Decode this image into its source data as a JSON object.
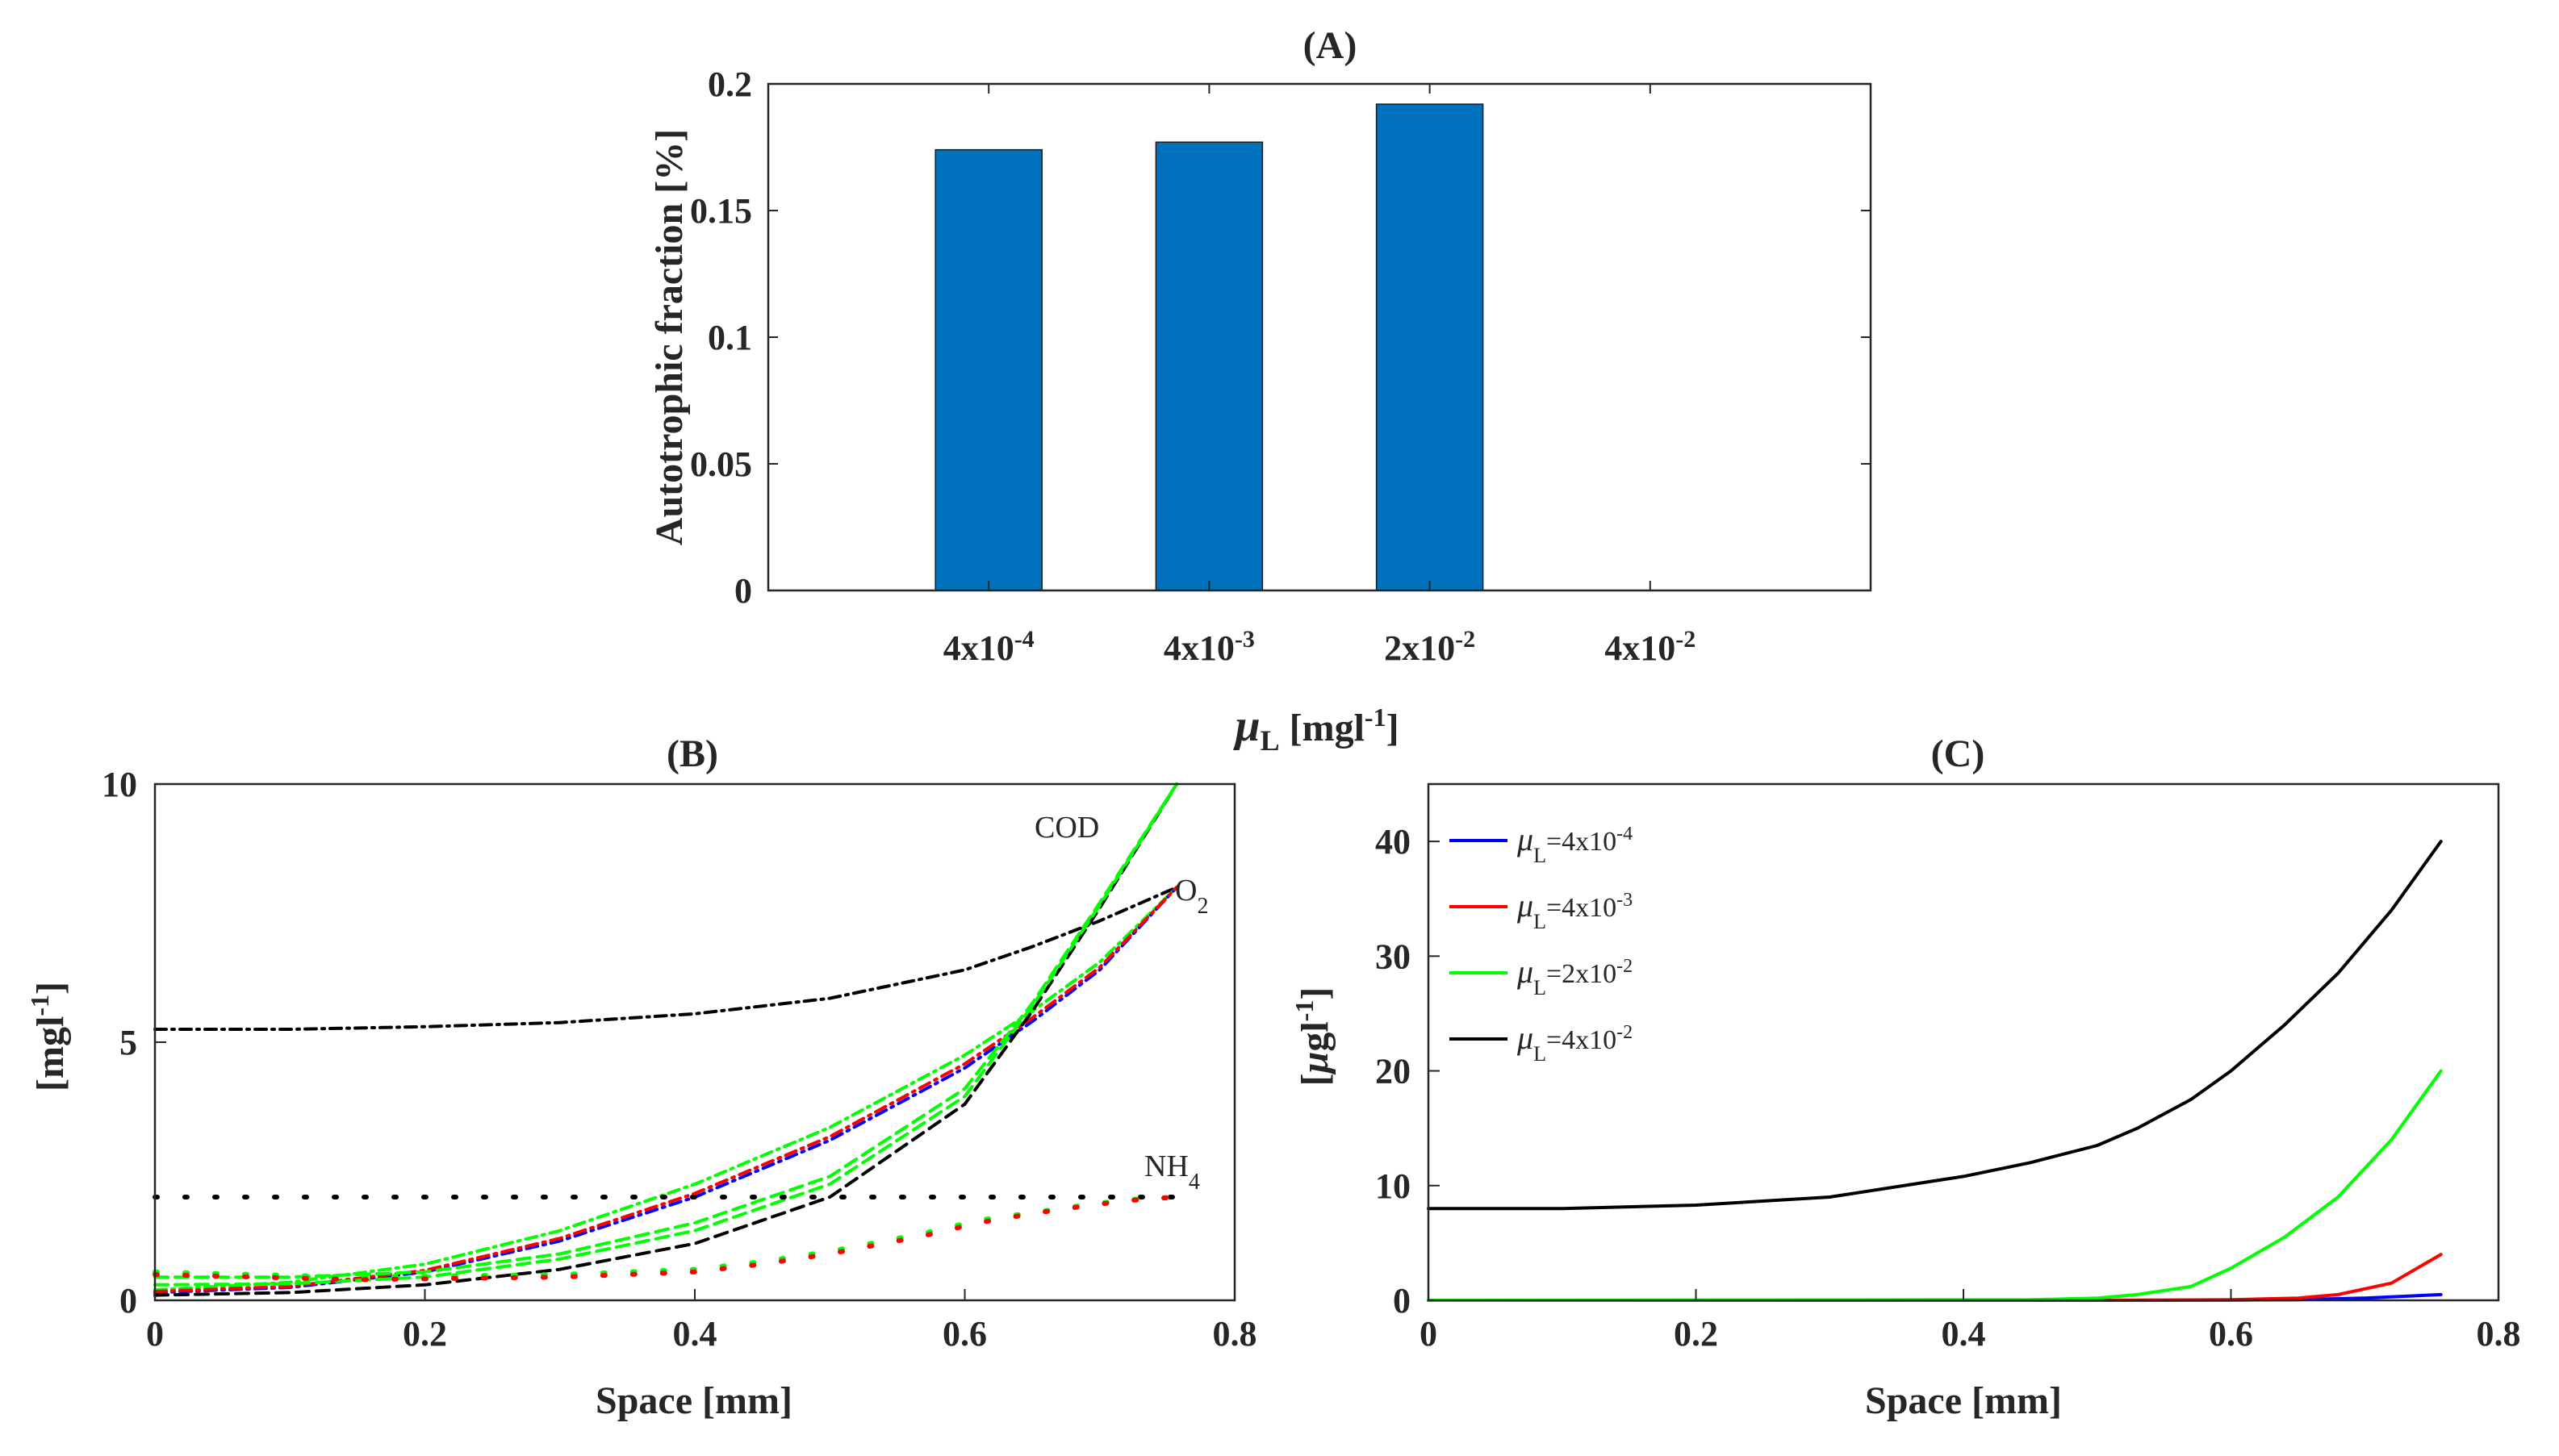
{
  "colors": {
    "bar": "#0072BD",
    "blue": "#0000FF",
    "red": "#FF0000",
    "green": "#00FF00",
    "black": "#000000",
    "axes": "#262626"
  },
  "chart_data": [
    {
      "id": "A",
      "type": "bar",
      "title": "(A)",
      "xlabel": "μL [mgl-1]",
      "ylabel": "Autotrophic fraction [%]",
      "categories": [
        "4x10-4",
        "4x10-3",
        "2x10-2",
        "4x10-2"
      ],
      "values": [
        0.174,
        0.177,
        0.192,
        null
      ],
      "ylim": [
        0,
        0.2
      ],
      "yticks": [
        "0",
        "0.05",
        "0.1",
        "0.15",
        "0.2"
      ],
      "grid": false
    },
    {
      "id": "B",
      "type": "line",
      "title": "(B)",
      "xlabel": "Space [mm]",
      "ylabel": "[mgl-1]",
      "xlim": [
        0,
        0.8
      ],
      "ylim": [
        0,
        10
      ],
      "xticks": [
        "0",
        "0.2",
        "0.4",
        "0.6",
        "0.8"
      ],
      "yticks": [
        "0",
        "5",
        "10"
      ],
      "annotations": [
        "COD",
        "O2",
        "NH4"
      ],
      "grid": false,
      "series": [
        {
          "group": "O2",
          "color": "black",
          "style": "dashdot",
          "x": [
            0,
            0.1,
            0.2,
            0.3,
            0.4,
            0.5,
            0.6,
            0.65,
            0.7,
            0.757
          ],
          "y": [
            5.25,
            5.25,
            5.3,
            5.38,
            5.55,
            5.85,
            6.4,
            6.85,
            7.35,
            8.0
          ]
        },
        {
          "group": "O2",
          "color": "green",
          "style": "dashdot",
          "x": [
            0,
            0.1,
            0.2,
            0.3,
            0.4,
            0.5,
            0.6,
            0.65,
            0.7,
            0.757
          ],
          "y": [
            0.2,
            0.35,
            0.7,
            1.35,
            2.25,
            3.35,
            4.75,
            5.6,
            6.55,
            8.0
          ]
        },
        {
          "group": "O2",
          "color": "blue",
          "style": "dashdot",
          "x": [
            0,
            0.1,
            0.2,
            0.3,
            0.4,
            0.5,
            0.6,
            0.65,
            0.7,
            0.757
          ],
          "y": [
            0.15,
            0.25,
            0.55,
            1.15,
            2.0,
            3.1,
            4.5,
            5.4,
            6.4,
            8.0
          ]
        },
        {
          "group": "O2",
          "color": "red",
          "style": "dashdot",
          "x": [
            0,
            0.1,
            0.2,
            0.3,
            0.4,
            0.5,
            0.6,
            0.65,
            0.7,
            0.757
          ],
          "y": [
            0.17,
            0.27,
            0.58,
            1.2,
            2.07,
            3.17,
            4.58,
            5.47,
            6.45,
            8.0
          ]
        },
        {
          "group": "COD",
          "color": "black",
          "style": "dashed",
          "x": [
            0,
            0.1,
            0.2,
            0.3,
            0.4,
            0.5,
            0.6,
            0.65,
            0.7,
            0.757
          ],
          "y": [
            0.1,
            0.15,
            0.3,
            0.6,
            1.1,
            2.0,
            3.8,
            5.6,
            7.6,
            10.0
          ]
        },
        {
          "group": "COD",
          "color": "green",
          "style": "dashed",
          "x": [
            0,
            0.1,
            0.2,
            0.3,
            0.4,
            0.5,
            0.6,
            0.65,
            0.7,
            0.757
          ],
          "y": [
            0.45,
            0.45,
            0.55,
            0.9,
            1.5,
            2.4,
            4.1,
            5.75,
            7.7,
            10.0
          ]
        },
        {
          "group": "COD",
          "color": "green",
          "style": "dashed",
          "x": [
            0,
            0.1,
            0.2,
            0.3,
            0.4,
            0.5,
            0.6,
            0.65,
            0.7,
            0.757
          ],
          "y": [
            0.3,
            0.32,
            0.45,
            0.8,
            1.35,
            2.25,
            3.95,
            5.7,
            7.65,
            10.0
          ]
        },
        {
          "group": "NH4",
          "color": "black",
          "style": "dotted",
          "x": [
            0,
            0.1,
            0.2,
            0.3,
            0.4,
            0.5,
            0.6,
            0.7,
            0.757
          ],
          "y": [
            2.0,
            2.0,
            2.0,
            2.0,
            2.0,
            2.0,
            2.0,
            2.0,
            2.0
          ]
        },
        {
          "group": "NH4",
          "color": "green",
          "style": "dotted",
          "x": [
            0,
            0.15,
            0.3,
            0.4,
            0.45,
            0.5,
            0.57,
            0.61,
            0.65,
            0.69,
            0.72,
            0.757
          ],
          "y": [
            0.55,
            0.45,
            0.5,
            0.6,
            0.75,
            0.95,
            1.3,
            1.55,
            1.7,
            1.85,
            1.95,
            2.0
          ]
        },
        {
          "group": "NH4",
          "color": "red",
          "style": "dotted",
          "x": [
            0,
            0.15,
            0.3,
            0.4,
            0.45,
            0.5,
            0.57,
            0.61,
            0.65,
            0.69,
            0.72,
            0.757
          ],
          "y": [
            0.5,
            0.4,
            0.45,
            0.55,
            0.7,
            0.9,
            1.25,
            1.5,
            1.68,
            1.83,
            1.93,
            2.0
          ]
        }
      ]
    },
    {
      "id": "C",
      "type": "line",
      "title": "(C)",
      "xlabel": "Space [mm]",
      "ylabel": "[μgl-1]",
      "xlim": [
        0,
        0.8
      ],
      "ylim": [
        0,
        45
      ],
      "xticks": [
        "0",
        "0.2",
        "0.4",
        "0.6",
        "0.8"
      ],
      "yticks": [
        "0",
        "10",
        "20",
        "30",
        "40"
      ],
      "legend": "top-left",
      "grid": false,
      "series": [
        {
          "name": "μL=4x10-4",
          "color": "blue",
          "x": [
            0,
            0.5,
            0.6,
            0.65,
            0.7,
            0.757
          ],
          "y": [
            0,
            0,
            0.02,
            0.05,
            0.2,
            0.5
          ]
        },
        {
          "name": "μL=4x10-3",
          "color": "red",
          "x": [
            0,
            0.5,
            0.6,
            0.65,
            0.68,
            0.72,
            0.757
          ],
          "y": [
            0,
            0,
            0.05,
            0.2,
            0.5,
            1.5,
            4.0
          ]
        },
        {
          "name": "μL=2x10-2",
          "color": "green",
          "x": [
            0,
            0.45,
            0.5,
            0.53,
            0.57,
            0.6,
            0.64,
            0.68,
            0.72,
            0.757
          ],
          "y": [
            0,
            0.05,
            0.2,
            0.5,
            1.2,
            2.8,
            5.5,
            9.0,
            14.0,
            20.0
          ]
        },
        {
          "name": "μL=4x10-2",
          "color": "black",
          "x": [
            0,
            0.1,
            0.2,
            0.3,
            0.4,
            0.45,
            0.5,
            0.53,
            0.57,
            0.6,
            0.64,
            0.68,
            0.72,
            0.757
          ],
          "y": [
            8.0,
            8.0,
            8.3,
            9.0,
            10.8,
            12.0,
            13.5,
            15.0,
            17.5,
            20.0,
            24.0,
            28.5,
            34.0,
            40.0
          ]
        }
      ]
    }
  ]
}
